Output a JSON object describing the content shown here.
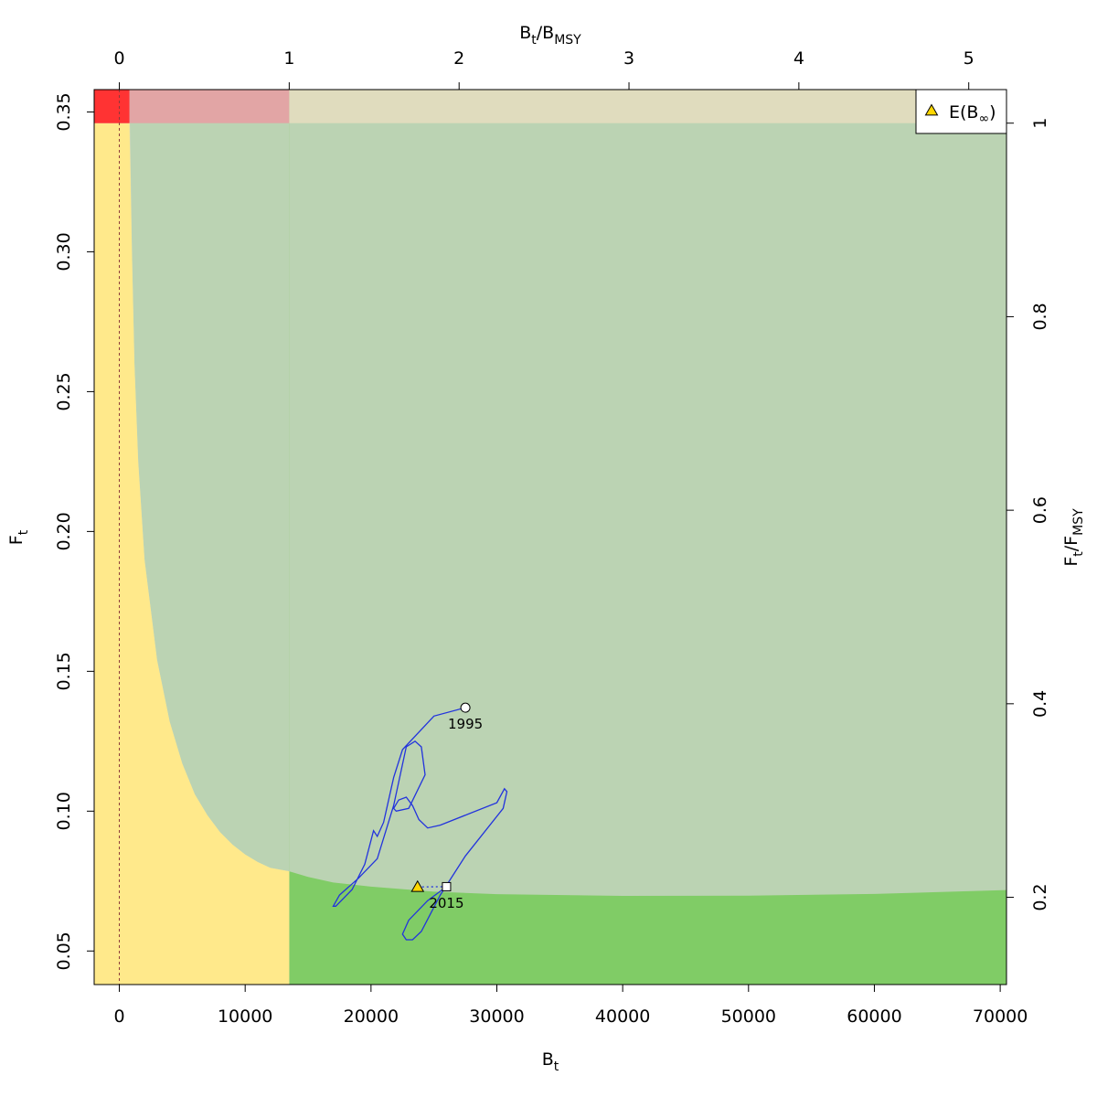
{
  "chart_data": {
    "type": "line",
    "xlabel": "B",
    "xlabel_sub": "t",
    "ylabel": "F",
    "ylabel_sub": "t",
    "top_xlabel_parts": [
      "B",
      "t",
      "/B",
      "MSY"
    ],
    "right_ylabel_parts": [
      "F",
      "t",
      "/F",
      "MSY"
    ],
    "xlim": [
      -2000,
      70500
    ],
    "ylim": [
      0.038,
      0.358
    ],
    "x_ticks": [
      0,
      10000,
      20000,
      30000,
      40000,
      50000,
      60000,
      70000
    ],
    "x_tick_labels": [
      "0",
      "10000",
      "20000",
      "30000",
      "40000",
      "50000",
      "60000",
      "70000"
    ],
    "y_ticks": [
      0.05,
      0.1,
      0.15,
      0.2,
      0.25,
      0.3,
      0.35
    ],
    "y_tick_labels": [
      "0.05",
      "0.10",
      "0.15",
      "0.20",
      "0.25",
      "0.30",
      "0.35"
    ],
    "bmsy": 13500,
    "fmsy": 0.346,
    "top_ticks": [
      0,
      1,
      2,
      3,
      4,
      5
    ],
    "top_tick_labels": [
      "0",
      "1",
      "2",
      "3",
      "4",
      "5"
    ],
    "right_ticks": [
      0.2,
      0.4,
      0.6,
      0.8,
      1.0
    ],
    "right_tick_labels": [
      "0.2",
      "0.4",
      "0.6",
      "0.8",
      "1"
    ],
    "zone_colors": {
      "red": "#ff3333",
      "pink": "#e2a5a5",
      "khaki": "#e0dcbe",
      "yellow": "#ffe98b",
      "pale_green": "#bbd3b3",
      "green": "#80cc66"
    },
    "threshold_curve": [
      [
        800,
        0.358
      ],
      [
        1000,
        0.3
      ],
      [
        1200,
        0.26
      ],
      [
        1500,
        0.225
      ],
      [
        2000,
        0.19
      ],
      [
        3000,
        0.154
      ],
      [
        4000,
        0.132
      ],
      [
        5000,
        0.117
      ],
      [
        6000,
        0.106
      ],
      [
        7000,
        0.0985
      ],
      [
        8000,
        0.0925
      ],
      [
        9000,
        0.088
      ],
      [
        10000,
        0.0845
      ],
      [
        11000,
        0.0818
      ],
      [
        12000,
        0.0797
      ],
      [
        13500,
        0.0785
      ],
      [
        15000,
        0.0765
      ],
      [
        17000,
        0.0745
      ],
      [
        20000,
        0.073
      ],
      [
        25000,
        0.0712
      ],
      [
        30000,
        0.0703
      ],
      [
        40000,
        0.0697
      ],
      [
        50000,
        0.0698
      ],
      [
        60000,
        0.0704
      ],
      [
        70500,
        0.0718
      ]
    ],
    "series": [
      {
        "color": "#2233dd",
        "points": [
          [
            27500,
            0.137
          ],
          [
            25000,
            0.134
          ],
          [
            22500,
            0.122
          ],
          [
            21800,
            0.112
          ],
          [
            21000,
            0.096
          ],
          [
            20500,
            0.091
          ],
          [
            20200,
            0.093
          ],
          [
            19500,
            0.081
          ],
          [
            18500,
            0.072
          ],
          [
            17200,
            0.066
          ],
          [
            17000,
            0.066
          ],
          [
            17500,
            0.07
          ],
          [
            19000,
            0.076
          ],
          [
            20500,
            0.083
          ],
          [
            21800,
            0.102
          ],
          [
            22800,
            0.123
          ],
          [
            23500,
            0.125
          ],
          [
            24000,
            0.123
          ],
          [
            24300,
            0.113
          ],
          [
            23000,
            0.101
          ],
          [
            22000,
            0.1
          ],
          [
            21800,
            0.101
          ],
          [
            22200,
            0.104
          ],
          [
            22800,
            0.105
          ],
          [
            23300,
            0.102
          ],
          [
            23800,
            0.097
          ],
          [
            24500,
            0.094
          ],
          [
            25500,
            0.095
          ],
          [
            30000,
            0.103
          ],
          [
            30600,
            0.108
          ],
          [
            30800,
            0.107
          ],
          [
            30500,
            0.101
          ],
          [
            27500,
            0.084
          ],
          [
            25500,
            0.07
          ],
          [
            24000,
            0.057
          ],
          [
            23300,
            0.054
          ],
          [
            22800,
            0.054
          ],
          [
            22500,
            0.056
          ],
          [
            23000,
            0.061
          ],
          [
            24500,
            0.068
          ],
          [
            26000,
            0.073
          ]
        ]
      }
    ],
    "start_label": "1995",
    "end_label": "2015",
    "expected_point": [
      23700,
      0.0729
    ],
    "expected_marker_color": "#ffd700",
    "legend": {
      "symbol": "triangle",
      "label_parts": [
        "E(B",
        "∞",
        ")"
      ],
      "position": "top-right"
    },
    "grid": false
  }
}
